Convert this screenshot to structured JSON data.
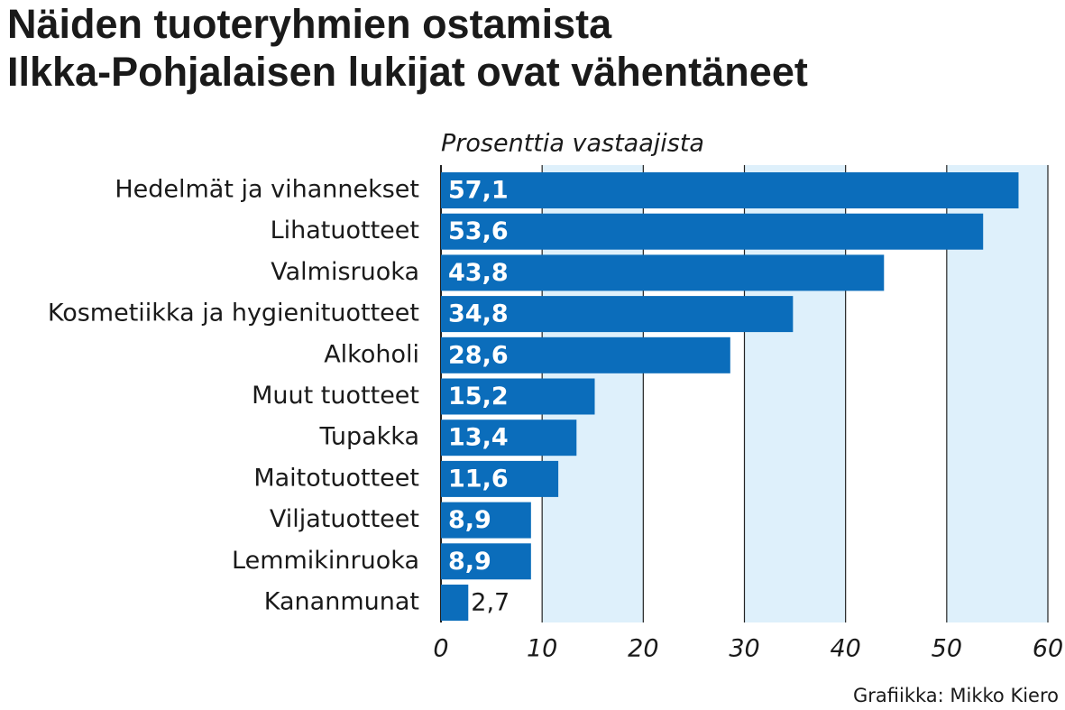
{
  "chart_data": {
    "type": "bar",
    "orientation": "horizontal",
    "title": [
      "Näiden tuoteryhmien ostamista",
      "Ilkka-Pohjalaisen lukijat ovat vähentäneet"
    ],
    "subtitle": "Prosenttia vastaajista",
    "categories": [
      "Hedelmät ja vihannekset",
      "Lihatuotteet",
      "Valmisruoka",
      "Kosmetiikka ja hygienituotteet",
      "Alkoholi",
      "Muut tuotteet",
      "Tupakka",
      "Maitotuotteet",
      "Viljatuotteet",
      "Lemmikinruoka",
      "Kananmunat"
    ],
    "values": [
      57.1,
      53.6,
      43.8,
      34.8,
      28.6,
      15.2,
      13.4,
      11.6,
      8.9,
      8.9,
      2.7
    ],
    "value_labels": [
      "57,1",
      "53,6",
      "43,8",
      "34,8",
      "28,6",
      "15,2",
      "13,4",
      "11,6",
      "8,9",
      "8,9",
      "2,7"
    ],
    "color": "#0b6dbb",
    "xlim": [
      0,
      60
    ],
    "xticks": [
      0,
      10,
      20,
      30,
      40,
      50,
      60
    ],
    "grid": true,
    "band_color": "#def0fb",
    "credit": "Grafiikka: Mikko Kiero"
  }
}
